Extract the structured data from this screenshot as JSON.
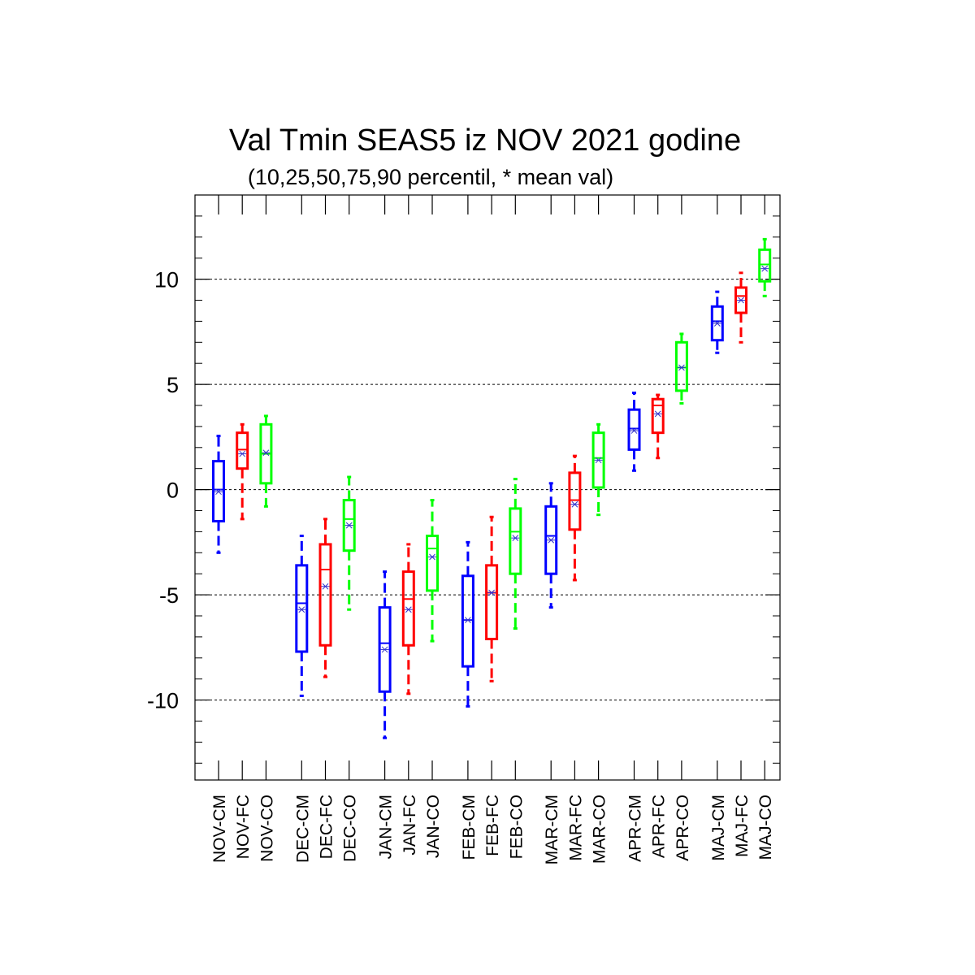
{
  "chart_data": {
    "type": "box",
    "title": "Val Tmin SEAS5 iz NOV 2021 godine",
    "subtitle": "(10,25,50,75,90 percentil, * mean val)",
    "ylim": [
      -13.8,
      14
    ],
    "yticks": [
      -10,
      -5,
      0,
      5,
      10
    ],
    "ytick_labels": [
      "-10",
      "-5",
      "0",
      "5",
      "10"
    ],
    "grid": "horizontal dashed at major y ticks",
    "colors": {
      "CM": "#0000ff",
      "FC": "#ff0000",
      "CO": "#00ff00",
      "mean_marker": "#3333cc"
    },
    "groups": [
      "NOV",
      "DEC",
      "JAN",
      "FEB",
      "MAR",
      "APR",
      "MAJ"
    ],
    "boxes": [
      {
        "label": "NOV-CM",
        "kind": "CM",
        "p10": -3.0,
        "p25": -1.5,
        "p50": 0.0,
        "p75": 1.35,
        "p90": 2.55,
        "mean": -0.1
      },
      {
        "label": "NOV-FC",
        "kind": "FC",
        "p10": -1.4,
        "p25": 1.0,
        "p50": 1.9,
        "p75": 2.7,
        "p90": 3.1,
        "mean": 1.7
      },
      {
        "label": "NOV-CO",
        "kind": "CO",
        "p10": -0.8,
        "p25": 0.3,
        "p50": 1.7,
        "p75": 3.1,
        "p90": 3.5,
        "mean": 1.75
      },
      {
        "label": "DEC-CM",
        "kind": "CM",
        "p10": -9.8,
        "p25": -7.7,
        "p50": -5.4,
        "p75": -3.6,
        "p90": -2.2,
        "mean": -5.7
      },
      {
        "label": "DEC-FC",
        "kind": "FC",
        "p10": -8.9,
        "p25": -7.4,
        "p50": -3.8,
        "p75": -2.6,
        "p90": -1.4,
        "mean": -4.6
      },
      {
        "label": "DEC-CO",
        "kind": "CO",
        "p10": -5.7,
        "p25": -2.9,
        "p50": -1.4,
        "p75": -0.5,
        "p90": 0.6,
        "mean": -1.7
      },
      {
        "label": "JAN-CM",
        "kind": "CM",
        "p10": -11.8,
        "p25": -9.6,
        "p50": -7.3,
        "p75": -5.6,
        "p90": -3.9,
        "mean": -7.6
      },
      {
        "label": "JAN-FC",
        "kind": "FC",
        "p10": -9.7,
        "p25": -7.4,
        "p50": -5.2,
        "p75": -3.9,
        "p90": -2.6,
        "mean": -5.7
      },
      {
        "label": "JAN-CO",
        "kind": "CO",
        "p10": -7.2,
        "p25": -4.8,
        "p50": -2.8,
        "p75": -2.2,
        "p90": -0.5,
        "mean": -3.2
      },
      {
        "label": "FEB-CM",
        "kind": "CM",
        "p10": -10.3,
        "p25": -8.4,
        "p50": -6.2,
        "p75": -4.1,
        "p90": -2.5,
        "mean": -6.2
      },
      {
        "label": "FEB-FC",
        "kind": "FC",
        "p10": -9.1,
        "p25": -7.1,
        "p50": -4.9,
        "p75": -3.6,
        "p90": -1.3,
        "mean": -4.9
      },
      {
        "label": "FEB-CO",
        "kind": "CO",
        "p10": -6.6,
        "p25": -4.0,
        "p50": -2.0,
        "p75": -0.9,
        "p90": 0.5,
        "mean": -2.3
      },
      {
        "label": "MAR-CM",
        "kind": "CM",
        "p10": -5.6,
        "p25": -4.0,
        "p50": -2.2,
        "p75": -0.8,
        "p90": 0.3,
        "mean": -2.4
      },
      {
        "label": "MAR-FC",
        "kind": "FC",
        "p10": -4.3,
        "p25": -1.9,
        "p50": -0.5,
        "p75": 0.8,
        "p90": 1.6,
        "mean": -0.7
      },
      {
        "label": "MAR-CO",
        "kind": "CO",
        "p10": -1.2,
        "p25": 0.1,
        "p50": 1.5,
        "p75": 2.7,
        "p90": 3.1,
        "mean": 1.4
      },
      {
        "label": "APR-CM",
        "kind": "CM",
        "p10": 0.9,
        "p25": 1.9,
        "p50": 2.9,
        "p75": 3.8,
        "p90": 4.6,
        "mean": 2.8
      },
      {
        "label": "APR-FC",
        "kind": "FC",
        "p10": 1.5,
        "p25": 2.7,
        "p50": 4.0,
        "p75": 4.3,
        "p90": 4.5,
        "mean": 3.6
      },
      {
        "label": "APR-CO",
        "kind": "CO",
        "p10": 4.1,
        "p25": 4.7,
        "p50": 5.8,
        "p75": 7.0,
        "p90": 7.4,
        "mean": 5.8
      },
      {
        "label": "MAJ-CM",
        "kind": "CM",
        "p10": 6.5,
        "p25": 7.1,
        "p50": 8.0,
        "p75": 8.7,
        "p90": 9.4,
        "mean": 7.9
      },
      {
        "label": "MAJ-FC",
        "kind": "FC",
        "p10": 7.0,
        "p25": 8.4,
        "p50": 9.2,
        "p75": 9.6,
        "p90": 10.3,
        "mean": 9.0
      },
      {
        "label": "MAJ-CO",
        "kind": "CO",
        "p10": 9.2,
        "p25": 9.9,
        "p50": 10.7,
        "p75": 11.4,
        "p90": 11.9,
        "mean": 10.5
      }
    ]
  }
}
